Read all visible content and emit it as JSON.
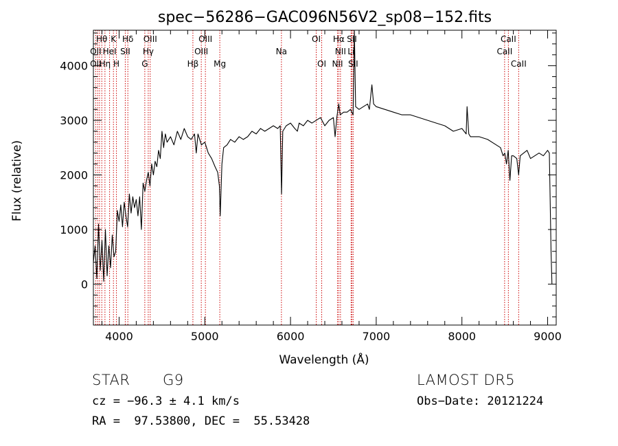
{
  "chart_data": {
    "type": "line",
    "title": "spec−56286−GAC096N56V2_sp08−152.fits",
    "xlabel": "Wavelength (Å)",
    "ylabel": "Flux (relative)",
    "xlim": [
      3700,
      9100
    ],
    "ylim": [
      -750,
      4650
    ],
    "grid": false,
    "xticks": [
      4000,
      5000,
      6000,
      7000,
      8000,
      9000
    ],
    "yticks": [
      0,
      1000,
      2000,
      3000,
      4000
    ],
    "series": [
      {
        "points": [
          [
            3700,
            400
          ],
          [
            3720,
            700
          ],
          [
            3740,
            100
          ],
          [
            3760,
            1100
          ],
          [
            3780,
            250
          ],
          [
            3800,
            800
          ],
          [
            3820,
            50
          ],
          [
            3840,
            1000
          ],
          [
            3860,
            150
          ],
          [
            3880,
            700
          ],
          [
            3900,
            300
          ],
          [
            3920,
            900
          ],
          [
            3940,
            500
          ],
          [
            3960,
            600
          ],
          [
            3980,
            1350
          ],
          [
            4000,
            1150
          ],
          [
            4020,
            1450
          ],
          [
            4040,
            1050
          ],
          [
            4060,
            1500
          ],
          [
            4080,
            1250
          ],
          [
            4100,
            1050
          ],
          [
            4120,
            1650
          ],
          [
            4140,
            1300
          ],
          [
            4160,
            1600
          ],
          [
            4180,
            1400
          ],
          [
            4200,
            1550
          ],
          [
            4220,
            1250
          ],
          [
            4240,
            1600
          ],
          [
            4260,
            1000
          ],
          [
            4280,
            1850
          ],
          [
            4300,
            1700
          ],
          [
            4320,
            1900
          ],
          [
            4340,
            2050
          ],
          [
            4360,
            1800
          ],
          [
            4380,
            2200
          ],
          [
            4400,
            2000
          ],
          [
            4420,
            2250
          ],
          [
            4440,
            2150
          ],
          [
            4460,
            2450
          ],
          [
            4480,
            2300
          ],
          [
            4500,
            2800
          ],
          [
            4520,
            2500
          ],
          [
            4540,
            2750
          ],
          [
            4560,
            2600
          ],
          [
            4600,
            2700
          ],
          [
            4640,
            2550
          ],
          [
            4680,
            2800
          ],
          [
            4720,
            2650
          ],
          [
            4760,
            2850
          ],
          [
            4800,
            2700
          ],
          [
            4840,
            2650
          ],
          [
            4880,
            2750
          ],
          [
            4900,
            2400
          ],
          [
            4920,
            2750
          ],
          [
            4960,
            2550
          ],
          [
            5000,
            2600
          ],
          [
            5040,
            2400
          ],
          [
            5080,
            2300
          ],
          [
            5120,
            2150
          ],
          [
            5150,
            2050
          ],
          [
            5170,
            1800
          ],
          [
            5180,
            1250
          ],
          [
            5200,
            2200
          ],
          [
            5220,
            2500
          ],
          [
            5260,
            2550
          ],
          [
            5300,
            2650
          ],
          [
            5350,
            2600
          ],
          [
            5400,
            2700
          ],
          [
            5450,
            2650
          ],
          [
            5500,
            2700
          ],
          [
            5550,
            2800
          ],
          [
            5600,
            2750
          ],
          [
            5650,
            2850
          ],
          [
            5700,
            2800
          ],
          [
            5750,
            2850
          ],
          [
            5800,
            2900
          ],
          [
            5850,
            2850
          ],
          [
            5880,
            2900
          ],
          [
            5895,
            1650
          ],
          [
            5910,
            2800
          ],
          [
            5950,
            2900
          ],
          [
            6000,
            2950
          ],
          [
            6050,
            2850
          ],
          [
            6080,
            2800
          ],
          [
            6100,
            2950
          ],
          [
            6150,
            2900
          ],
          [
            6200,
            3000
          ],
          [
            6250,
            2950
          ],
          [
            6300,
            3000
          ],
          [
            6350,
            3050
          ],
          [
            6400,
            2900
          ],
          [
            6450,
            3000
          ],
          [
            6500,
            3050
          ],
          [
            6520,
            2700
          ],
          [
            6540,
            3050
          ],
          [
            6563,
            3300
          ],
          [
            6580,
            3100
          ],
          [
            6620,
            3150
          ],
          [
            6660,
            3150
          ],
          [
            6700,
            3200
          ],
          [
            6730,
            3100
          ],
          [
            6745,
            4650
          ],
          [
            6760,
            3250
          ],
          [
            6800,
            3200
          ],
          [
            6850,
            3250
          ],
          [
            6900,
            3300
          ],
          [
            6920,
            3200
          ],
          [
            6950,
            3650
          ],
          [
            6970,
            3300
          ],
          [
            7000,
            3250
          ],
          [
            7100,
            3200
          ],
          [
            7200,
            3150
          ],
          [
            7300,
            3100
          ],
          [
            7400,
            3100
          ],
          [
            7500,
            3050
          ],
          [
            7600,
            3000
          ],
          [
            7700,
            2950
          ],
          [
            7800,
            2900
          ],
          [
            7900,
            2800
          ],
          [
            8000,
            2850
          ],
          [
            8050,
            2750
          ],
          [
            8060,
            3250
          ],
          [
            8080,
            2750
          ],
          [
            8100,
            2700
          ],
          [
            8200,
            2700
          ],
          [
            8300,
            2650
          ],
          [
            8400,
            2550
          ],
          [
            8450,
            2500
          ],
          [
            8480,
            2350
          ],
          [
            8500,
            2400
          ],
          [
            8520,
            2200
          ],
          [
            8540,
            2450
          ],
          [
            8560,
            1900
          ],
          [
            8580,
            2350
          ],
          [
            8600,
            2350
          ],
          [
            8640,
            2300
          ],
          [
            8662,
            2000
          ],
          [
            8680,
            2350
          ],
          [
            8720,
            2400
          ],
          [
            8760,
            2450
          ],
          [
            8800,
            2300
          ],
          [
            8850,
            2350
          ],
          [
            8900,
            2400
          ],
          [
            8950,
            2350
          ],
          [
            9000,
            2450
          ],
          [
            9020,
            2400
          ],
          [
            9040,
            600
          ],
          [
            9050,
            0
          ]
        ]
      }
    ],
    "lines": [
      {
        "wave": 3727,
        "label": "OII"
      },
      {
        "wave": 3750,
        "label": "OII"
      },
      {
        "wave": 3771,
        "label": "Hη"
      },
      {
        "wave": 3798,
        "label": "Hθ"
      },
      {
        "wave": 3835,
        "label": "Hη"
      },
      {
        "wave": 3889,
        "label": "HeI"
      },
      {
        "wave": 3934,
        "label": "K"
      },
      {
        "wave": 3969,
        "label": "H"
      },
      {
        "wave": 4072,
        "label": "SII"
      },
      {
        "wave": 4102,
        "label": "Hδ"
      },
      {
        "wave": 4300,
        "label": "G"
      },
      {
        "wave": 4340,
        "label": "Hγ"
      },
      {
        "wave": 4363,
        "label": "OIII"
      },
      {
        "wave": 4861,
        "label": "Hβ"
      },
      {
        "wave": 4959,
        "label": "OIII"
      },
      {
        "wave": 5007,
        "label": "OIII"
      },
      {
        "wave": 5175,
        "label": "Mg"
      },
      {
        "wave": 5894,
        "label": "Na"
      },
      {
        "wave": 6300,
        "label": "OI"
      },
      {
        "wave": 6364,
        "label": "OI"
      },
      {
        "wave": 6548,
        "label": "NII"
      },
      {
        "wave": 6563,
        "label": "Hα"
      },
      {
        "wave": 6583,
        "label": "NII"
      },
      {
        "wave": 6707,
        "label": "Li"
      },
      {
        "wave": 6716,
        "label": "SII"
      },
      {
        "wave": 6731,
        "label": "SII"
      },
      {
        "wave": 8498,
        "label": "CaII"
      },
      {
        "wave": 8542,
        "label": "CaII"
      },
      {
        "wave": 8662,
        "label": "CaII"
      }
    ],
    "line_labels": [
      {
        "text": "Hθ",
        "wave": 3798,
        "row": 0
      },
      {
        "text": "K",
        "wave": 3934,
        "row": 0
      },
      {
        "text": "Hδ",
        "wave": 4102,
        "row": 0
      },
      {
        "text": "OIII",
        "wave": 4363,
        "row": 0
      },
      {
        "text": "OIII",
        "wave": 5007,
        "row": 0
      },
      {
        "text": "OI",
        "wave": 6300,
        "row": 0
      },
      {
        "text": "Hα",
        "wave": 6563,
        "row": 0
      },
      {
        "text": "SII",
        "wave": 6716,
        "row": 0
      },
      {
        "text": "CaII",
        "wave": 8542,
        "row": 0
      },
      {
        "text": "OII",
        "wave": 3727,
        "row": 1
      },
      {
        "text": "HeI",
        "wave": 3889,
        "row": 1
      },
      {
        "text": "SII",
        "wave": 4072,
        "row": 1
      },
      {
        "text": "Hγ",
        "wave": 4340,
        "row": 1
      },
      {
        "text": "OIII",
        "wave": 4959,
        "row": 1
      },
      {
        "text": "Na",
        "wave": 5894,
        "row": 1
      },
      {
        "text": "NII",
        "wave": 6583,
        "row": 1
      },
      {
        "text": "Li",
        "wave": 6707,
        "row": 1
      },
      {
        "text": "CaII",
        "wave": 8498,
        "row": 1
      },
      {
        "text": "OII",
        "wave": 3727,
        "row": 2
      },
      {
        "text": "Hη",
        "wave": 3835,
        "row": 2
      },
      {
        "text": "H",
        "wave": 3969,
        "row": 2
      },
      {
        "text": "G",
        "wave": 4300,
        "row": 2
      },
      {
        "text": "Hβ",
        "wave": 4861,
        "row": 2
      },
      {
        "text": "Mg",
        "wave": 5175,
        "row": 2
      },
      {
        "text": "OI",
        "wave": 6364,
        "row": 2
      },
      {
        "text": "NII",
        "wave": 6548,
        "row": 2
      },
      {
        "text": "SII",
        "wave": 6731,
        "row": 2
      },
      {
        "text": "CaII",
        "wave": 8662,
        "row": 2
      }
    ],
    "colors": {
      "spectrum": "#000000",
      "line_markers": "#cc0000"
    }
  },
  "footer": {
    "object_class": "STAR",
    "subclass": "G9",
    "cz": "cz = −96.3 ± 4.1 km/s",
    "coords": "RA =  97.53800, DEC =  55.53428",
    "survey": "LAMOST DR5",
    "obs_date": "Obs−Date: 20121224"
  }
}
